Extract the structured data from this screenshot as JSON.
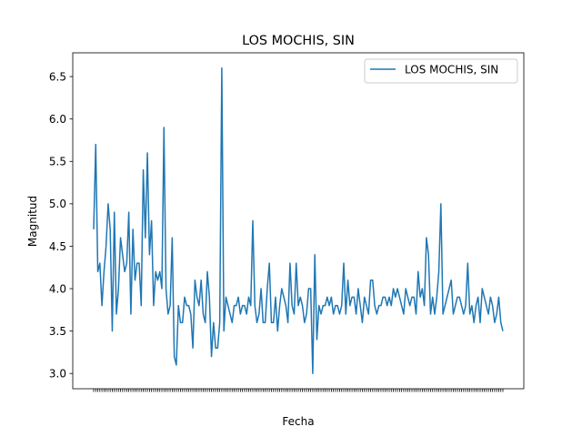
{
  "chart_data": {
    "type": "line",
    "title": "LOS MOCHIS, SIN",
    "xlabel": "Fecha",
    "ylabel": "Magnitud",
    "ylim": [
      2.82,
      6.78
    ],
    "yticks": [
      "3.0",
      "3.5",
      "4.0",
      "4.5",
      "5.0",
      "5.5",
      "6.0",
      "6.5"
    ],
    "legend_position": "upper right",
    "grid": false,
    "series": [
      {
        "name": "LOS MOCHIS, SIN",
        "color": "#1f77b4",
        "values": [
          4.7,
          5.7,
          4.2,
          4.3,
          3.8,
          4.2,
          4.5,
          5.0,
          4.7,
          3.5,
          4.9,
          3.7,
          4.0,
          4.6,
          4.4,
          4.2,
          4.3,
          4.9,
          3.7,
          4.7,
          4.1,
          4.3,
          4.3,
          3.8,
          5.4,
          4.6,
          5.6,
          4.4,
          4.8,
          3.8,
          4.2,
          4.1,
          4.2,
          4.0,
          5.9,
          4.0,
          3.7,
          3.8,
          4.6,
          3.2,
          3.1,
          3.8,
          3.6,
          3.6,
          3.9,
          3.8,
          3.8,
          3.7,
          3.3,
          4.1,
          3.9,
          3.8,
          4.1,
          3.7,
          3.6,
          4.2,
          3.9,
          3.2,
          3.6,
          3.3,
          3.3,
          3.6,
          6.6,
          3.5,
          3.9,
          3.8,
          3.7,
          3.6,
          3.8,
          3.8,
          3.9,
          3.7,
          3.8,
          3.8,
          3.7,
          3.9,
          3.8,
          4.8,
          3.8,
          3.6,
          3.7,
          4.0,
          3.6,
          3.6,
          4.0,
          4.3,
          3.6,
          3.6,
          3.9,
          3.5,
          3.8,
          4.0,
          3.9,
          3.8,
          3.6,
          4.3,
          3.8,
          3.7,
          4.3,
          3.8,
          3.9,
          3.8,
          3.6,
          3.7,
          4.0,
          4.0,
          3.0,
          4.4,
          3.4,
          3.8,
          3.7,
          3.8,
          3.8,
          3.9,
          3.8,
          3.9,
          3.7,
          3.8,
          3.8,
          3.7,
          3.8,
          4.3,
          3.7,
          4.1,
          3.8,
          3.9,
          3.9,
          3.7,
          4.0,
          3.8,
          3.6,
          3.9,
          3.8,
          3.7,
          4.1,
          4.1,
          3.8,
          3.7,
          3.8,
          3.8,
          3.9,
          3.9,
          3.8,
          3.9,
          3.8,
          4.0,
          3.9,
          4.0,
          3.9,
          3.8,
          3.7,
          4.0,
          3.9,
          3.8,
          3.9,
          3.9,
          3.7,
          4.2,
          3.9,
          4.0,
          3.8,
          4.6,
          4.4,
          3.7,
          3.9,
          3.7,
          3.9,
          4.2,
          5.0,
          3.7,
          3.8,
          3.9,
          4.0,
          4.1,
          3.7,
          3.8,
          3.9,
          3.9,
          3.8,
          3.7,
          3.8,
          4.3,
          3.7,
          3.8,
          3.6,
          3.8,
          3.9,
          3.6,
          4.0,
          3.9,
          3.8,
          3.7,
          3.9,
          3.8,
          3.6,
          3.7,
          3.9,
          3.6,
          3.5
        ]
      }
    ]
  }
}
